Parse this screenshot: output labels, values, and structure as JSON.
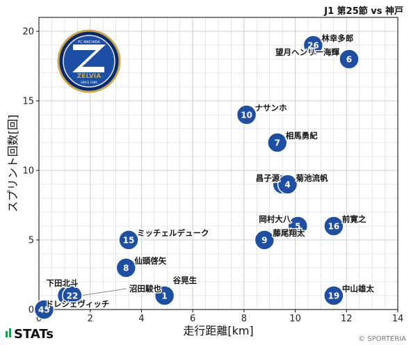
{
  "header": {
    "match": "J1 第25節 vs 神戸"
  },
  "footer": {
    "brand": "STATs",
    "credit": "© SPORTERIA"
  },
  "club_logo": {
    "name": "FC MACHIDA ZELVIA",
    "top": "FC MACHIDA",
    "bottom": "ZELVIA",
    "since": "SINCE 1989"
  },
  "colors": {
    "marker": "#1f4fa3",
    "marker_edge": "#ffffff",
    "grid": "#cccccc"
  },
  "chart_data": {
    "type": "scatter",
    "title": "J1 第25節 vs 神戸",
    "xlabel": "走行距離[km]",
    "ylabel": "スプリント回数[回]",
    "xlim": [
      0,
      14
    ],
    "ylim": [
      0,
      21
    ],
    "xticks": [
      0,
      2,
      4,
      6,
      8,
      10,
      12,
      14
    ],
    "yticks": [
      0,
      5,
      10,
      15,
      20
    ],
    "grid": true,
    "points": [
      {
        "number": "26",
        "name": "林幸多郎",
        "x": 10.7,
        "y": 19
      },
      {
        "number": "6",
        "name": "望月ヘンリー海輝",
        "x": 12.1,
        "y": 18
      },
      {
        "number": "10",
        "name": "ナサンホ",
        "x": 8.1,
        "y": 14
      },
      {
        "number": "7",
        "name": "相馬勇紀",
        "x": 9.3,
        "y": 12
      },
      {
        "number": "3",
        "name": "昌子源",
        "x": 9.5,
        "y": 9
      },
      {
        "number": "4",
        "name": "菊池流帆",
        "x": 9.7,
        "y": 9
      },
      {
        "number": "5",
        "name": "岡村大八",
        "x": 10.1,
        "y": 6
      },
      {
        "number": "16",
        "name": "前寛之",
        "x": 11.5,
        "y": 6
      },
      {
        "number": "9",
        "name": "藤尾翔太",
        "x": 8.8,
        "y": 5
      },
      {
        "number": "15",
        "name": "ミッチェルデューク",
        "x": 3.5,
        "y": 5
      },
      {
        "number": "8",
        "name": "仙頭啓矢",
        "x": 3.4,
        "y": 3
      },
      {
        "number": "1",
        "name": "谷晃生",
        "x": 4.9,
        "y": 1
      },
      {
        "number": "19",
        "name": "中山雄太",
        "x": 11.5,
        "y": 1
      },
      {
        "number": "18",
        "name": "下田北斗",
        "x": 1.1,
        "y": 1
      },
      {
        "number": "22",
        "name": "沼田駿也",
        "x": 1.3,
        "y": 1
      },
      {
        "number": "45",
        "name": "ドレシェヴィッチ",
        "x": 0.2,
        "y": 0
      }
    ]
  }
}
